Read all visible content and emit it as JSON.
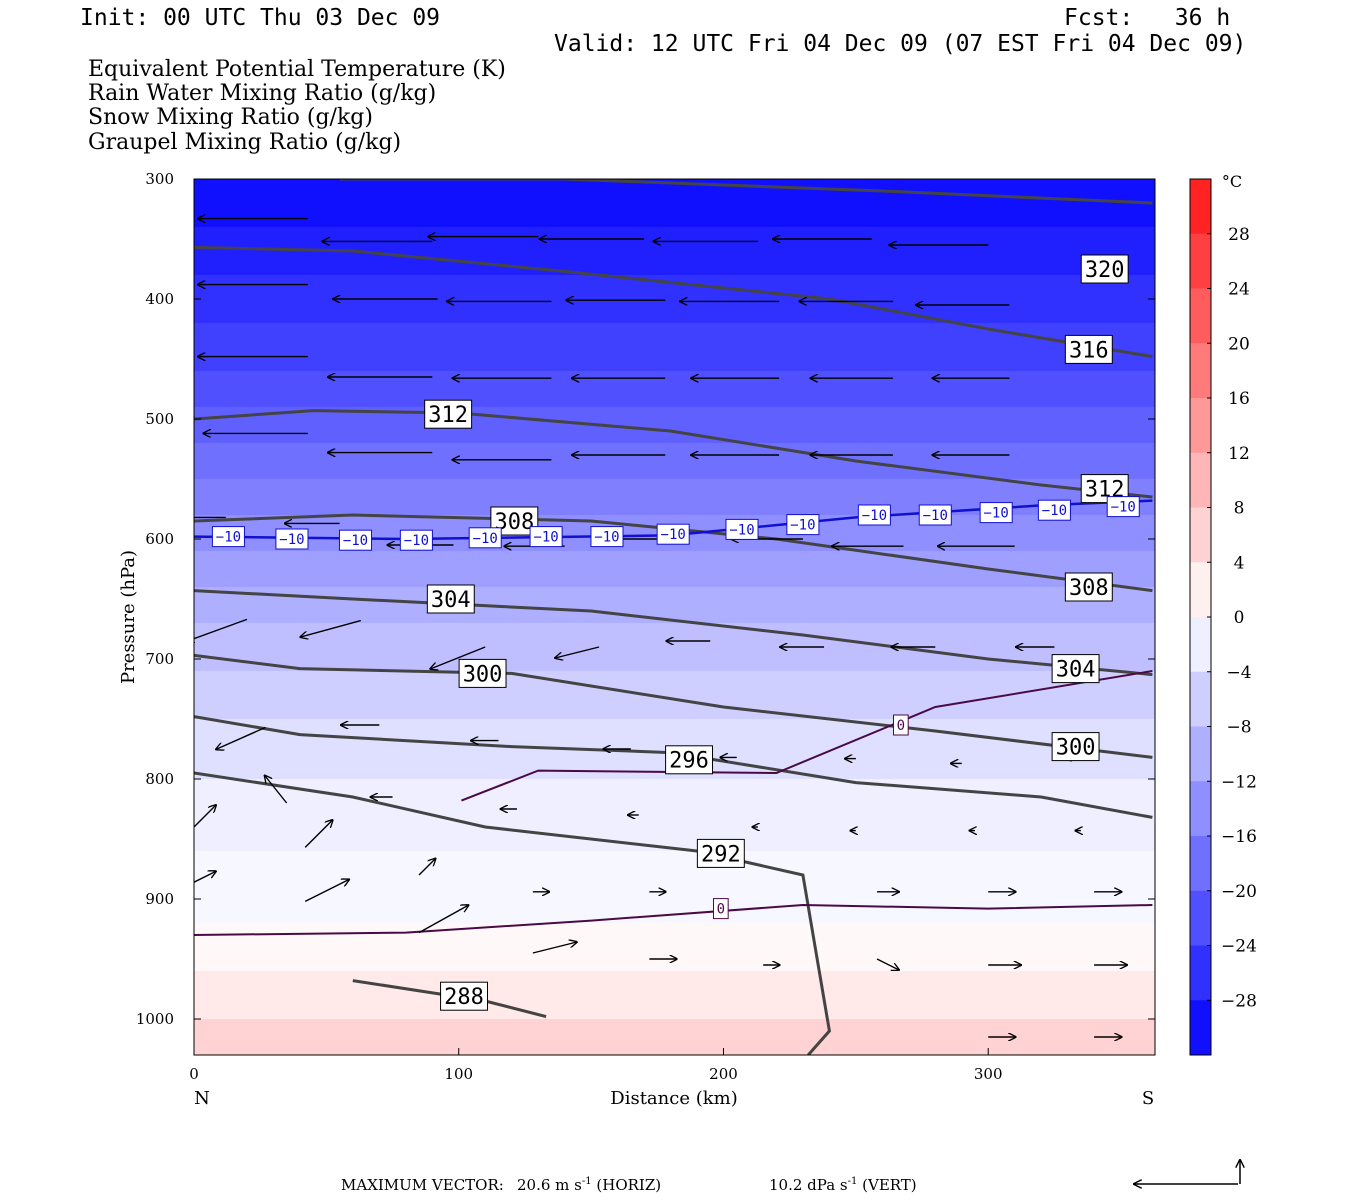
{
  "header": {
    "init": "Init: 00 UTC Thu 03 Dec 09",
    "fcst": "Fcst:   36 h",
    "valid": "Valid: 12 UTC Fri 04 Dec 09 (07 EST Fri 04 Dec 09)"
  },
  "legend": [
    {
      "text": "Equivalent Potential Temperature (K)",
      "color": "#555555"
    },
    {
      "text": "Rain Water Mixing Ratio (g/kg)",
      "color": "#008000"
    },
    {
      "text": "Snow Mixing Ratio (g/kg)",
      "color": "#f0905a"
    },
    {
      "text": "Graupel Mixing Ratio (g/kg)",
      "color": "#e878e8"
    }
  ],
  "footer": {
    "label": "MAXIMUM VECTOR:",
    "horiz_value": "20.6 m s",
    "horiz_exp": "-1",
    "horiz_tag": "(HORIZ)",
    "vert_value": "10.2 dPa s",
    "vert_exp": "-1",
    "vert_tag": "(VERT)"
  },
  "chart_data": {
    "type": "heatmap",
    "description_fields": "temperature shading (°C) with theta-e contours (K) and wind vectors",
    "xlabel": "Distance (km)",
    "ylabel": "Pressure (hPa)",
    "xlim": [
      0,
      362
    ],
    "ylim_pressure_top_bottom": [
      300,
      1030
    ],
    "x_ticks": [
      0,
      100,
      200,
      300
    ],
    "y_ticks": [
      300,
      400,
      500,
      600,
      700,
      800,
      900,
      1000
    ],
    "x_end_labels": [
      "N",
      "S"
    ],
    "colorbar": {
      "unit": "°C",
      "ticks": [
        28,
        24,
        20,
        16,
        12,
        8,
        4,
        0,
        -4,
        -8,
        -12,
        -16,
        -20,
        -24,
        -28
      ],
      "tick_labels": [
        "28",
        "24",
        "20",
        "16",
        "12",
        "8",
        "4",
        "0",
        "−4",
        "−8",
        "−12",
        "−16",
        "−20",
        "−24",
        "−28"
      ],
      "range": [
        -32,
        32
      ]
    },
    "theta_e_contours": [
      {
        "label": "320",
        "points": [
          [
            55,
            300
          ],
          [
            140,
            300
          ],
          [
            260,
            310
          ],
          [
            362,
            320
          ]
        ],
        "label_at": [
          344,
          375
        ]
      },
      {
        "label": "316",
        "points": [
          [
            0,
            357
          ],
          [
            60,
            360
          ],
          [
            140,
            377
          ],
          [
            240,
            400
          ],
          [
            300,
            425
          ],
          [
            362,
            448
          ]
        ],
        "label_at": [
          338,
          442
        ]
      },
      {
        "label": "312",
        "points": [
          [
            0,
            500
          ],
          [
            45,
            493
          ],
          [
            100,
            495
          ],
          [
            180,
            510
          ],
          [
            250,
            535
          ],
          [
            320,
            555
          ],
          [
            362,
            565
          ]
        ],
        "label_at": [
          96,
          496
        ]
      },
      {
        "label": "312",
        "points": [],
        "label_at": [
          344,
          558
        ]
      },
      {
        "label": "308",
        "points": [
          [
            0,
            585
          ],
          [
            60,
            580
          ],
          [
            150,
            585
          ],
          [
            220,
            600
          ],
          [
            300,
            625
          ],
          [
            362,
            643
          ]
        ],
        "label_at": [
          121,
          585
        ]
      },
      {
        "label": "308",
        "points": [],
        "label_at": [
          338,
          640
        ]
      },
      {
        "label": "304",
        "points": [
          [
            0,
            643
          ],
          [
            60,
            650
          ],
          [
            150,
            660
          ],
          [
            230,
            680
          ],
          [
            300,
            700
          ],
          [
            362,
            713
          ]
        ],
        "label_at": [
          97,
          650
        ]
      },
      {
        "label": "304",
        "points": [],
        "label_at": [
          333,
          708
        ]
      },
      {
        "label": "300",
        "points": [
          [
            0,
            697
          ],
          [
            40,
            708
          ],
          [
            120,
            712
          ],
          [
            200,
            740
          ],
          [
            280,
            760
          ],
          [
            362,
            782
          ]
        ],
        "label_at": [
          109,
          712
        ]
      },
      {
        "label": "300",
        "points": [],
        "label_at": [
          333,
          773
        ]
      },
      {
        "label": "296",
        "points": [
          [
            0,
            748
          ],
          [
            40,
            763
          ],
          [
            120,
            773
          ],
          [
            180,
            778
          ],
          [
            250,
            803
          ],
          [
            320,
            815
          ],
          [
            362,
            832
          ]
        ],
        "label_at": [
          187,
          784
        ]
      },
      {
        "label": "292",
        "points": [
          [
            0,
            795
          ],
          [
            60,
            815
          ],
          [
            110,
            840
          ],
          [
            190,
            860
          ],
          [
            230,
            880
          ],
          [
            240,
            1010
          ],
          [
            232,
            1030
          ]
        ],
        "label_at": [
          199,
          862
        ]
      },
      {
        "label": "288",
        "points": [
          [
            60,
            968
          ],
          [
            110,
            985
          ],
          [
            133,
            998
          ]
        ],
        "label_at": [
          102,
          981
        ]
      }
    ],
    "isotherm_minus10": {
      "label": "−10",
      "points": [
        [
          0,
          598
        ],
        [
          80,
          600
        ],
        [
          180,
          597
        ],
        [
          250,
          582
        ],
        [
          320,
          572
        ],
        [
          362,
          568
        ]
      ],
      "label_positions": [
        [
          13,
          598
        ],
        [
          37,
          600
        ],
        [
          61,
          601
        ],
        [
          84,
          601
        ],
        [
          110,
          599
        ],
        [
          133,
          598
        ],
        [
          156,
          598
        ],
        [
          181,
          596
        ],
        [
          207,
          592
        ],
        [
          230,
          588
        ],
        [
          257,
          580
        ],
        [
          280,
          580
        ],
        [
          303,
          578
        ],
        [
          325,
          576
        ],
        [
          351,
          573
        ]
      ]
    },
    "isotherm_zero": [
      {
        "label": "0",
        "points": [
          [
            0,
            930
          ],
          [
            80,
            928
          ],
          [
            150,
            918
          ],
          [
            230,
            905
          ],
          [
            300,
            908
          ],
          [
            362,
            905
          ]
        ],
        "label_at": [
          199,
          908
        ]
      },
      {
        "label": "0",
        "points": [
          [
            101,
            818
          ],
          [
            130,
            793
          ],
          [
            220,
            795
          ],
          [
            280,
            740
          ],
          [
            362,
            710
          ]
        ],
        "label_at": [
          267,
          755
        ]
      }
    ],
    "shading_bands_by_pressure": [
      {
        "p": 300,
        "temp": -30
      },
      {
        "p": 340,
        "temp": -28
      },
      {
        "p": 380,
        "temp": -26
      },
      {
        "p": 420,
        "temp": -24
      },
      {
        "p": 460,
        "temp": -22
      },
      {
        "p": 490,
        "temp": -20
      },
      {
        "p": 520,
        "temp": -18
      },
      {
        "p": 550,
        "temp": -16
      },
      {
        "p": 580,
        "temp": -14
      },
      {
        "p": 610,
        "temp": -12
      },
      {
        "p": 640,
        "temp": -10
      },
      {
        "p": 670,
        "temp": -8
      },
      {
        "p": 710,
        "temp": -6
      },
      {
        "p": 750,
        "temp": -4
      },
      {
        "p": 800,
        "temp": -2
      },
      {
        "p": 860,
        "temp": -1
      },
      {
        "p": 920,
        "temp": 1
      },
      {
        "p": 960,
        "temp": 3
      },
      {
        "p": 1000,
        "temp": 6
      },
      {
        "p": 1030,
        "temp": 8
      }
    ],
    "wind_vectors": [
      {
        "x": 0,
        "p": 328,
        "u": -20,
        "w": 0
      },
      {
        "x": 43,
        "p": 333,
        "u": -20,
        "w": 0
      },
      {
        "x": 90,
        "p": 352,
        "u": -20,
        "w": 0
      },
      {
        "x": 130,
        "p": 348,
        "u": -20,
        "w": 0
      },
      {
        "x": 170,
        "p": 350,
        "u": -19,
        "w": 0
      },
      {
        "x": 213,
        "p": 352,
        "u": -19,
        "w": 0
      },
      {
        "x": 256,
        "p": 350,
        "u": -18,
        "w": 0
      },
      {
        "x": 300,
        "p": 355,
        "u": -18,
        "w": 0
      },
      {
        "x": 0,
        "p": 380,
        "u": -20,
        "w": 0
      },
      {
        "x": 43,
        "p": 388,
        "u": -20,
        "w": 0
      },
      {
        "x": 92,
        "p": 400,
        "u": -19,
        "w": 0
      },
      {
        "x": 135,
        "p": 402,
        "u": -19,
        "w": 0
      },
      {
        "x": 178,
        "p": 401,
        "u": -18,
        "w": 0
      },
      {
        "x": 221,
        "p": 402,
        "u": -18,
        "w": 0
      },
      {
        "x": 264,
        "p": 402,
        "u": -17,
        "w": 0
      },
      {
        "x": 308,
        "p": 405,
        "u": -17,
        "w": 0
      },
      {
        "x": 0,
        "p": 440,
        "u": -20,
        "w": 0
      },
      {
        "x": 43,
        "p": 448,
        "u": -20,
        "w": 0
      },
      {
        "x": 90,
        "p": 465,
        "u": -19,
        "w": 0
      },
      {
        "x": 135,
        "p": 466,
        "u": -18,
        "w": 0
      },
      {
        "x": 178,
        "p": 466,
        "u": -17,
        "w": 0
      },
      {
        "x": 221,
        "p": 466,
        "u": -16,
        "w": 0
      },
      {
        "x": 264,
        "p": 466,
        "u": -15,
        "w": 0
      },
      {
        "x": 308,
        "p": 466,
        "u": -14,
        "w": 0
      },
      {
        "x": 0,
        "p": 505,
        "u": -20,
        "w": 0
      },
      {
        "x": 43,
        "p": 512,
        "u": -19,
        "w": 0
      },
      {
        "x": 90,
        "p": 528,
        "u": -19,
        "w": 0
      },
      {
        "x": 135,
        "p": 534,
        "u": -18,
        "w": 0
      },
      {
        "x": 178,
        "p": 530,
        "u": -17,
        "w": 0
      },
      {
        "x": 221,
        "p": 530,
        "u": -16,
        "w": 0
      },
      {
        "x": 264,
        "p": 530,
        "u": -15,
        "w": 0
      },
      {
        "x": 308,
        "p": 530,
        "u": -14,
        "w": 0
      },
      {
        "x": 12,
        "p": 582,
        "u": -10,
        "w": 0
      },
      {
        "x": 55,
        "p": 587,
        "u": -10,
        "w": 0
      },
      {
        "x": 98,
        "p": 605,
        "u": -12,
        "w": 0
      },
      {
        "x": 140,
        "p": 606,
        "u": -11,
        "w": 0
      },
      {
        "x": 183,
        "p": 600,
        "u": -12,
        "w": 0
      },
      {
        "x": 230,
        "p": 600,
        "u": -13,
        "w": 0
      },
      {
        "x": 268,
        "p": 606,
        "u": -13,
        "w": 0
      },
      {
        "x": 310,
        "p": 606,
        "u": -14,
        "w": 0
      },
      {
        "x": 20,
        "p": 667,
        "u": -11,
        "w": -4
      },
      {
        "x": 63,
        "p": 668,
        "u": -11,
        "w": -3
      },
      {
        "x": 110,
        "p": 690,
        "u": -10,
        "w": -4
      },
      {
        "x": 153,
        "p": 690,
        "u": -8,
        "w": -2
      },
      {
        "x": 195,
        "p": 685,
        "u": -8,
        "w": 0
      },
      {
        "x": 238,
        "p": 690,
        "u": -8,
        "w": 0
      },
      {
        "x": 280,
        "p": 690,
        "u": -8,
        "w": 0
      },
      {
        "x": 325,
        "p": 690,
        "u": -7,
        "w": 0
      },
      {
        "x": 27,
        "p": 757,
        "u": -9,
        "w": -4
      },
      {
        "x": 70,
        "p": 755,
        "u": -7,
        "w": 0
      },
      {
        "x": 115,
        "p": 768,
        "u": -5,
        "w": 0
      },
      {
        "x": 165,
        "p": 775,
        "u": -5,
        "w": 0
      },
      {
        "x": 205,
        "p": 782,
        "u": -3,
        "w": 0
      },
      {
        "x": 250,
        "p": 783,
        "u": -2,
        "w": 0
      },
      {
        "x": 290,
        "p": 787,
        "u": -2,
        "w": 0
      },
      {
        "x": 333,
        "p": 782,
        "u": -2,
        "w": 0
      },
      {
        "x": 35,
        "p": 820,
        "u": -4,
        "w": 5
      },
      {
        "x": 75,
        "p": 815,
        "u": -4,
        "w": 0
      },
      {
        "x": 122,
        "p": 825,
        "u": -3,
        "w": 0
      },
      {
        "x": 168,
        "p": 830,
        "u": -2,
        "w": 0
      },
      {
        "x": 213,
        "p": 840,
        "u": -1,
        "w": 0
      },
      {
        "x": 250,
        "p": 843,
        "u": -1,
        "w": 0
      },
      {
        "x": 295,
        "p": 843,
        "u": -1,
        "w": 0
      },
      {
        "x": 335,
        "p": 843,
        "u": -1,
        "w": 0
      },
      {
        "x": 0,
        "p": 840,
        "u": 4,
        "w": 4
      },
      {
        "x": 42,
        "p": 857,
        "u": 5,
        "w": 5
      },
      {
        "x": 85,
        "p": 880,
        "u": 3,
        "w": 3
      },
      {
        "x": 128,
        "p": 894,
        "u": 3,
        "w": 0
      },
      {
        "x": 172,
        "p": 894,
        "u": 3,
        "w": 0
      },
      {
        "x": 258,
        "p": 894,
        "u": 4,
        "w": 0
      },
      {
        "x": 300,
        "p": 894,
        "u": 5,
        "w": 0
      },
      {
        "x": 340,
        "p": 894,
        "u": 5,
        "w": 0
      },
      {
        "x": 0,
        "p": 886,
        "u": 4,
        "w": 2
      },
      {
        "x": 42,
        "p": 902,
        "u": 8,
        "w": 4
      },
      {
        "x": 85,
        "p": 928,
        "u": 9,
        "w": 5
      },
      {
        "x": 128,
        "p": 945,
        "u": 8,
        "w": 2
      },
      {
        "x": 172,
        "p": 950,
        "u": 5,
        "w": 0
      },
      {
        "x": 215,
        "p": 955,
        "u": 3,
        "w": 0
      },
      {
        "x": 258,
        "p": 950,
        "u": 4,
        "w": -2
      },
      {
        "x": 300,
        "p": 955,
        "u": 6,
        "w": 0
      },
      {
        "x": 340,
        "p": 955,
        "u": 6,
        "w": 0
      },
      {
        "x": 300,
        "p": 1015,
        "u": 5,
        "w": 0
      },
      {
        "x": 340,
        "p": 1015,
        "u": 5,
        "w": 0
      }
    ]
  }
}
